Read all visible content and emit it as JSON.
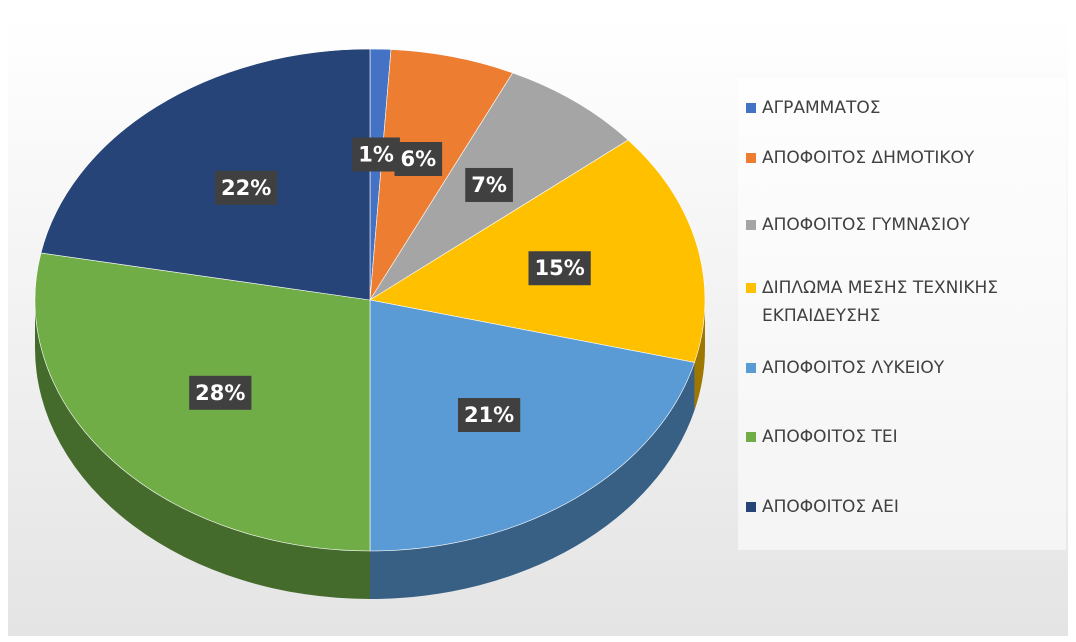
{
  "chart_data": {
    "type": "pie",
    "categories": [
      "ΑΓΡΑΜΜΑΤΟΣ",
      "ΑΠΟΦΟΙΤΟΣ ΔΗΜΟΤΙΚΟΥ",
      "ΑΠΟΦΟΙΤΟΣ ΓΥΜΝΑΣΙΟΥ",
      "ΔΙΠΛΩΜΑ ΜΕΣΗΣ ΤΕΧΝΙΚΗΣ ΕΚΠΑΙΔΕΥΣΗΣ",
      "ΑΠΟΦΟΙΤΟΣ ΛΥΚΕΙΟΥ",
      "ΑΠΟΦΟΙΤΟΣ ΤΕΙ",
      "ΑΠΟΦΟΙΤΟΣ ΑΕΙ"
    ],
    "values": [
      1,
      6,
      7,
      15,
      21,
      28,
      22
    ],
    "value_labels": [
      "1%",
      "6%",
      "7%",
      "15%",
      "21%",
      "28%",
      "22%"
    ],
    "colors": [
      "#4472c4",
      "#ed7d31",
      "#a5a5a5",
      "#ffc000",
      "#5b9bd5",
      "#70ad47",
      "#264478"
    ],
    "legend": "right"
  }
}
